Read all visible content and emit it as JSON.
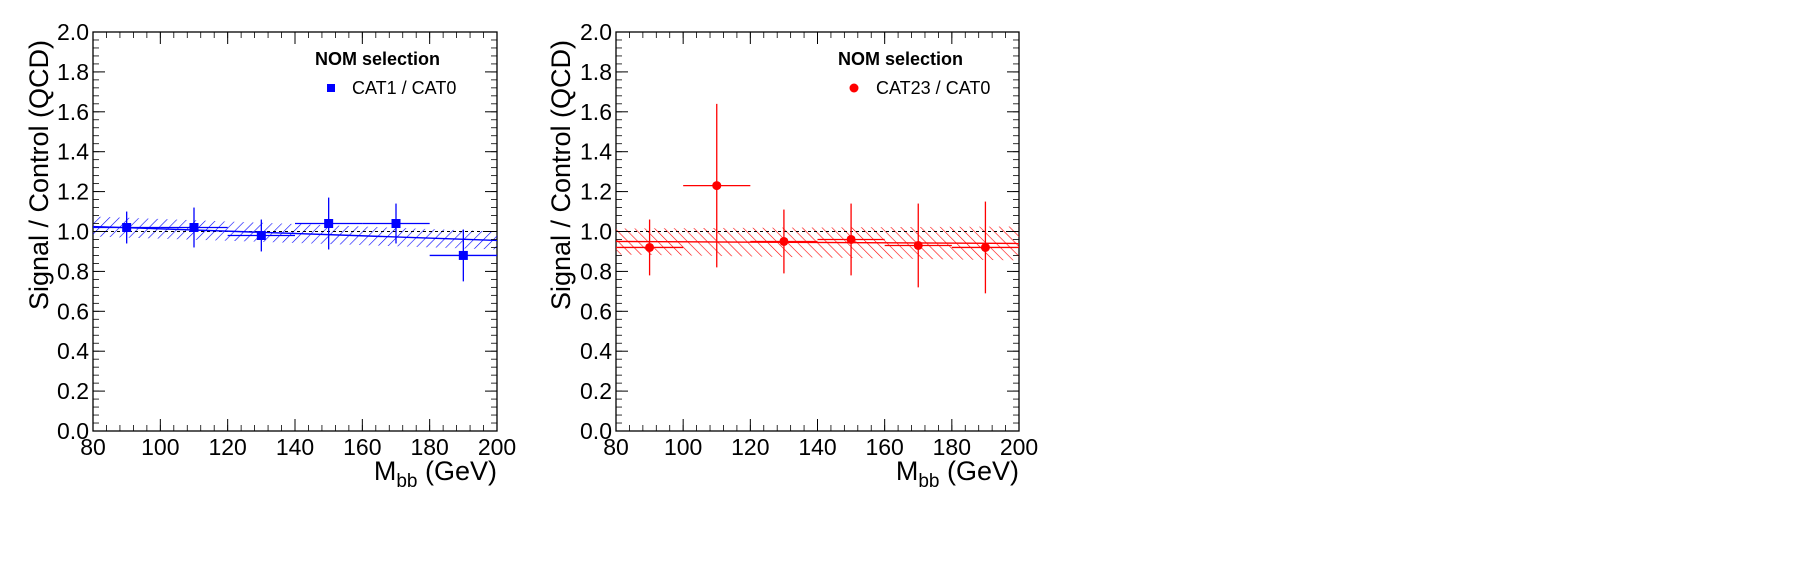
{
  "chart_data": [
    {
      "type": "scatter",
      "xlabel": "M",
      "xlabel_sub": "bb",
      "xlabel_unit": " (GeV)",
      "ylabel": "Signal / Control (QCD)",
      "xlim": [
        80,
        200
      ],
      "ylim": [
        0,
        2.0
      ],
      "xticks": [
        "80",
        "100",
        "120",
        "140",
        "160",
        "180",
        "200"
      ],
      "yticks": [
        "0.0",
        "0.2",
        "0.4",
        "0.6",
        "0.8",
        "1.0",
        "1.2",
        "1.4",
        "1.6",
        "1.8",
        "2.0"
      ],
      "grid": false,
      "legend_position": "top-right",
      "legend_header": "NOM selection",
      "reference_line_y": 1.0,
      "series": [
        {
          "name": "CAT1 / CAT0",
          "color": "#0000ff",
          "marker": "square",
          "x": [
            90,
            110,
            130,
            150,
            170,
            190
          ],
          "y": [
            1.02,
            1.02,
            0.98,
            1.04,
            1.04,
            0.88
          ],
          "yerr": [
            0.08,
            0.1,
            0.08,
            0.13,
            0.1,
            0.13
          ]
        }
      ],
      "fit": {
        "color": "#0000ff",
        "x": [
          80,
          200
        ],
        "y": [
          1.025,
          0.955
        ],
        "band_halfwidth": [
          0.05,
          0.045
        ]
      }
    },
    {
      "type": "scatter",
      "xlabel": "M",
      "xlabel_sub": "bb",
      "xlabel_unit": " (GeV)",
      "ylabel": "Signal / Control (QCD)",
      "xlim": [
        80,
        200
      ],
      "ylim": [
        0,
        2.0
      ],
      "xticks": [
        "80",
        "100",
        "120",
        "140",
        "160",
        "180",
        "200"
      ],
      "yticks": [
        "0.0",
        "0.2",
        "0.4",
        "0.6",
        "0.8",
        "1.0",
        "1.2",
        "1.4",
        "1.6",
        "1.8",
        "2.0"
      ],
      "grid": false,
      "legend_position": "top-right",
      "legend_header": "NOM selection",
      "reference_line_y": 1.0,
      "series": [
        {
          "name": "CAT23 / CAT0",
          "color": "#ff0000",
          "marker": "circle",
          "x": [
            90,
            110,
            130,
            150,
            170,
            190
          ],
          "y": [
            0.92,
            1.23,
            0.95,
            0.96,
            0.93,
            0.92
          ],
          "yerr": [
            0.14,
            0.41,
            0.16,
            0.18,
            0.21,
            0.23
          ]
        }
      ],
      "fit": {
        "color": "#ff0000",
        "x": [
          80,
          200
        ],
        "y": [
          0.95,
          0.94
        ],
        "band_halfwidth": [
          0.065,
          0.085
        ]
      }
    }
  ]
}
